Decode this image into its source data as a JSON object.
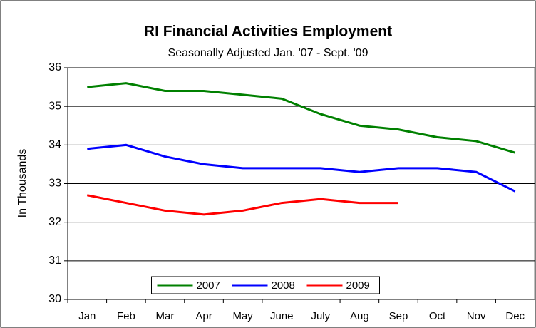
{
  "chart_data": {
    "type": "line",
    "title": "RI Financial Activities Employment",
    "subtitle": "Seasonally Adjusted Jan. '07 - Sept. '09",
    "y_label": "In Thousands",
    "categories": [
      "Jan",
      "Feb",
      "Mar",
      "Apr",
      "May",
      "June",
      "July",
      "Aug",
      "Sep",
      "Oct",
      "Nov",
      "Dec"
    ],
    "series": [
      {
        "name": "2007",
        "color": "#008000",
        "values": [
          35.5,
          35.6,
          35.4,
          35.4,
          35.3,
          35.2,
          34.8,
          34.5,
          34.4,
          34.2,
          34.1,
          33.8
        ]
      },
      {
        "name": "2008",
        "color": "#0000ff",
        "values": [
          33.9,
          34.0,
          33.7,
          33.5,
          33.4,
          33.4,
          33.4,
          33.3,
          33.4,
          33.4,
          33.3,
          32.8
        ]
      },
      {
        "name": "2009",
        "color": "#ff0000",
        "values": [
          32.7,
          32.5,
          32.3,
          32.2,
          32.3,
          32.5,
          32.6,
          32.5,
          32.5,
          null,
          null,
          null
        ]
      }
    ],
    "ylim": [
      30,
      36
    ],
    "yticks": [
      30,
      31,
      32,
      33,
      34,
      35,
      36
    ],
    "grid": true,
    "legend": "bottom"
  }
}
